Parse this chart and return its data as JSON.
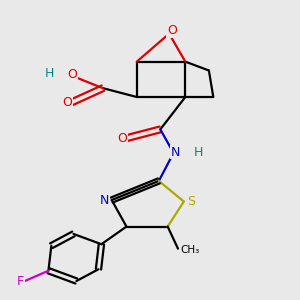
{
  "bg_color": "#e9e9e9",
  "colors": {
    "C": "#000000",
    "O": "#dd0000",
    "N": "#0000cc",
    "S": "#aaaa00",
    "F": "#cc00cc",
    "H": "#008888",
    "bond": "#000000"
  },
  "lw": 1.6,
  "sep": 0.018
}
